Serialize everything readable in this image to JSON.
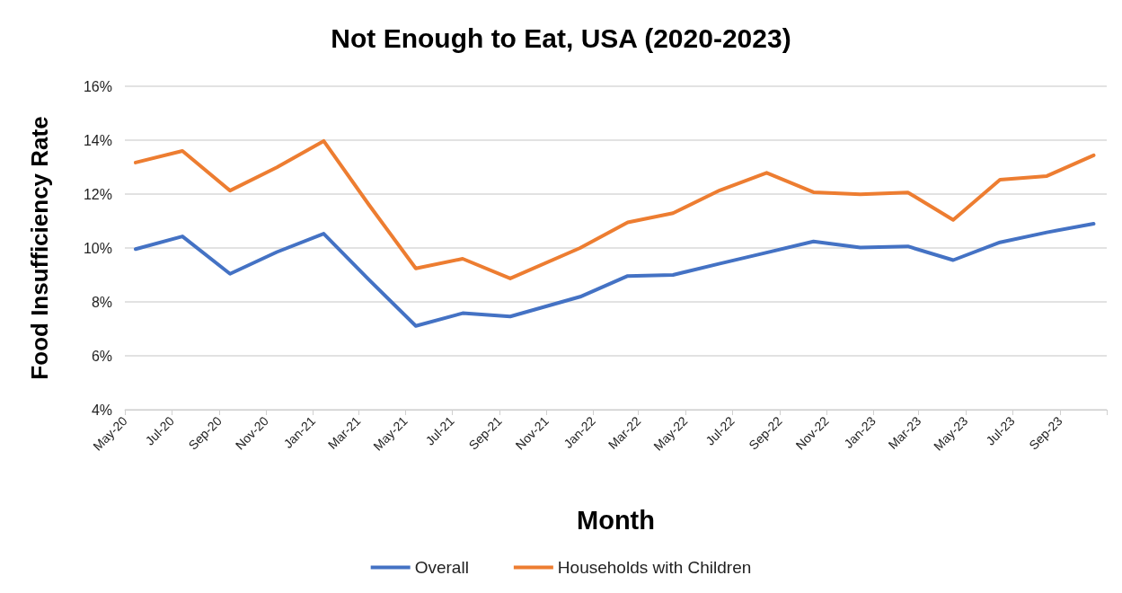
{
  "chart_data": {
    "type": "line",
    "title": "Not Enough to Eat, USA (2020-2023)",
    "xlabel": "Month",
    "ylabel": "Food Insufficiency Rate",
    "x": [
      "2020-05-15",
      "2020-07-15",
      "2020-09-15",
      "2020-11-15",
      "2021-01-15",
      "2021-03-15",
      "2021-05-15",
      "2021-07-15",
      "2021-09-15",
      "2021-12-15",
      "2022-02-15",
      "2022-04-15",
      "2022-06-15",
      "2022-08-15",
      "2022-10-15",
      "2022-12-15",
      "2023-02-15",
      "2023-04-15",
      "2023-06-15",
      "2023-08-15",
      "2023-10-15"
    ],
    "series": [
      {
        "name": "Overall",
        "color": "#4472c4",
        "values": [
          9.96,
          10.43,
          9.04,
          9.85,
          10.53,
          8.82,
          7.11,
          7.58,
          7.46,
          8.19,
          8.96,
          9.0,
          9.42,
          9.83,
          10.24,
          10.02,
          10.06,
          9.55,
          10.21,
          10.58,
          10.9
        ]
      },
      {
        "name": "Households with Children",
        "color": "#ed7d31",
        "values": [
          13.17,
          13.6,
          12.13,
          12.99,
          13.97,
          11.6,
          9.24,
          9.6,
          8.87,
          10.0,
          10.95,
          11.29,
          12.14,
          12.79,
          12.07,
          11.99,
          12.06,
          11.04,
          12.53,
          12.67,
          13.44
        ]
      }
    ],
    "xlim": [
      "2020-05-01",
      "2023-11-01"
    ],
    "xticks": [
      {
        "value": "2020-05-01",
        "label": "May-20"
      },
      {
        "value": "2020-07-01",
        "label": "Jul-20"
      },
      {
        "value": "2020-09-01",
        "label": "Sep-20"
      },
      {
        "value": "2020-11-01",
        "label": "Nov-20"
      },
      {
        "value": "2021-01-01",
        "label": "Jan-21"
      },
      {
        "value": "2021-03-01",
        "label": "Mar-21"
      },
      {
        "value": "2021-05-01",
        "label": "May-21"
      },
      {
        "value": "2021-07-01",
        "label": "Jul-21"
      },
      {
        "value": "2021-09-01",
        "label": "Sep-21"
      },
      {
        "value": "2021-11-01",
        "label": "Nov-21"
      },
      {
        "value": "2022-01-01",
        "label": "Jan-22"
      },
      {
        "value": "2022-03-01",
        "label": "Mar-22"
      },
      {
        "value": "2022-05-01",
        "label": "May-22"
      },
      {
        "value": "2022-07-01",
        "label": "Jul-22"
      },
      {
        "value": "2022-09-01",
        "label": "Sep-22"
      },
      {
        "value": "2022-11-01",
        "label": "Nov-22"
      },
      {
        "value": "2023-01-01",
        "label": "Jan-23"
      },
      {
        "value": "2023-03-01",
        "label": "Mar-23"
      },
      {
        "value": "2023-05-01",
        "label": "May-23"
      },
      {
        "value": "2023-07-01",
        "label": "Jul-23"
      },
      {
        "value": "2023-09-01",
        "label": "Sep-23"
      },
      {
        "value": "2023-11-01",
        "label": null
      }
    ],
    "ylim": [
      4,
      16
    ],
    "yticks": [
      {
        "value": 4,
        "label": "4%"
      },
      {
        "value": 6,
        "label": "6%"
      },
      {
        "value": 8,
        "label": "8%"
      },
      {
        "value": 10,
        "label": "10%"
      },
      {
        "value": 12,
        "label": "12%"
      },
      {
        "value": 14,
        "label": "14%"
      },
      {
        "value": 16,
        "label": "16%"
      }
    ],
    "grid": "y",
    "legend": "bottom",
    "marker": "none",
    "line_style": "solid"
  }
}
